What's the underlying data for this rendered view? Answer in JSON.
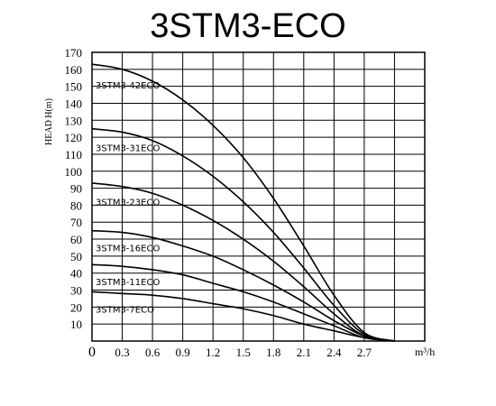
{
  "chart_data": {
    "type": "line",
    "title": "3STM3-ECO",
    "ylabel": "HEAD H(m)",
    "xlabel_unit": "m³/h",
    "xlim": [
      0,
      3.3
    ],
    "ylim": [
      0,
      170
    ],
    "x_ticks": [
      "0",
      "0.3",
      "0.6",
      "0.9",
      "1.2",
      "1.5",
      "1.8",
      "2.1",
      "2.4",
      "2.7"
    ],
    "y_ticks": [
      "10",
      "20",
      "30",
      "40",
      "50",
      "60",
      "70",
      "80",
      "90",
      "100",
      "110",
      "120",
      "130",
      "140",
      "150",
      "160",
      "170"
    ],
    "grid": true,
    "series": [
      {
        "name": "3STM3-42ECO",
        "x": [
          0,
          0.3,
          0.6,
          0.9,
          1.2,
          1.5,
          1.8,
          2.1,
          2.4,
          2.7,
          3.0
        ],
        "y": [
          163,
          160,
          153,
          142,
          127,
          108,
          84,
          56,
          27,
          5,
          0
        ]
      },
      {
        "name": "3STM3-31ECO",
        "x": [
          0,
          0.3,
          0.6,
          0.9,
          1.2,
          1.5,
          1.8,
          2.1,
          2.4,
          2.7,
          3.0
        ],
        "y": [
          125,
          123,
          118,
          109,
          97,
          82,
          64,
          43,
          21,
          4,
          0
        ]
      },
      {
        "name": "3STM3-23ECO",
        "x": [
          0,
          0.3,
          0.6,
          0.9,
          1.2,
          1.5,
          1.8,
          2.1,
          2.4,
          2.7,
          3.0
        ],
        "y": [
          93,
          91,
          87,
          80,
          71,
          60,
          47,
          32,
          16,
          3,
          0
        ]
      },
      {
        "name": "3STM3-16ECO",
        "x": [
          0,
          0.3,
          0.6,
          0.9,
          1.2,
          1.5,
          1.8,
          2.1,
          2.4,
          2.7,
          3.0
        ],
        "y": [
          65,
          64,
          61,
          56,
          50,
          42,
          33,
          23,
          12,
          3,
          0
        ]
      },
      {
        "name": "3STM3-11ECO",
        "x": [
          0,
          0.3,
          0.6,
          0.9,
          1.2,
          1.5,
          1.8,
          2.1,
          2.4,
          2.7,
          3.0
        ],
        "y": [
          45,
          44,
          42,
          39,
          34,
          29,
          23,
          16,
          9,
          2,
          0
        ]
      },
      {
        "name": "3STM3-7ECO",
        "x": [
          0,
          0.3,
          0.6,
          0.9,
          1.2,
          1.5,
          1.8,
          2.1,
          2.4,
          2.7,
          3.0
        ],
        "y": [
          29,
          28,
          27,
          25,
          22,
          19,
          15,
          10,
          6,
          2,
          0
        ]
      }
    ],
    "line_color": "#000000",
    "grid_color": "#000000"
  }
}
